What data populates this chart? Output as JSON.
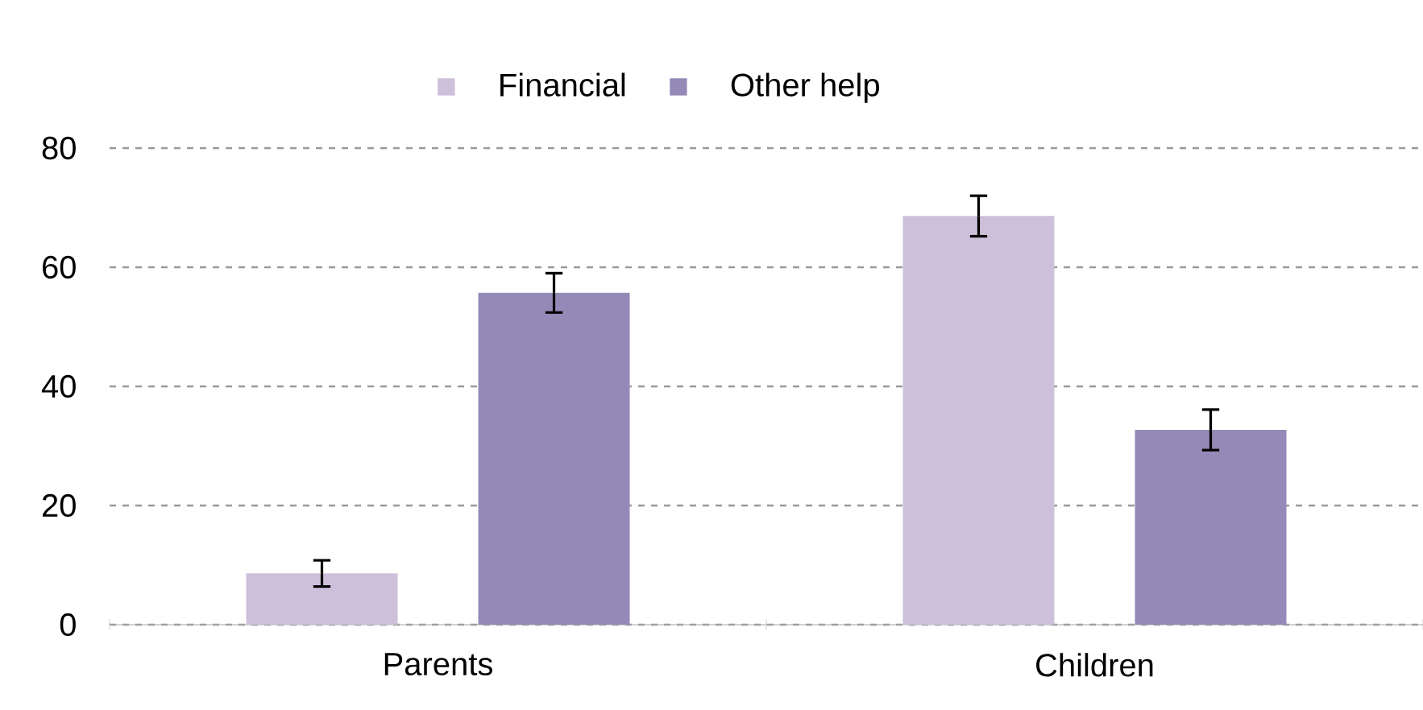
{
  "chart_data": {
    "type": "bar",
    "categories": [
      "Parents",
      "Children"
    ],
    "series": [
      {
        "name": "Financial",
        "color": "#ccc0da",
        "values": [
          8.6,
          68.6
        ],
        "errors": [
          2.2,
          3.4
        ]
      },
      {
        "name": "Other help",
        "color": "#958ab7",
        "values": [
          55.7,
          32.7
        ],
        "errors": [
          3.3,
          3.4
        ]
      }
    ],
    "ylim": [
      0,
      80
    ],
    "yticks": [
      0,
      20,
      40,
      60,
      80
    ],
    "grid": "y",
    "legend": "top"
  }
}
